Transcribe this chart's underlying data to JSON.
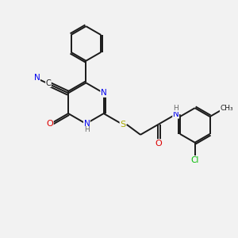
{
  "bg_color": "#f2f2f2",
  "bond_color": "#1a1a1a",
  "atom_colors": {
    "N": "#0000ee",
    "O": "#dd0000",
    "S": "#aaaa00",
    "Cl": "#00bb00",
    "C": "#1a1a1a",
    "H": "#666666"
  },
  "figsize": [
    3.0,
    3.0
  ],
  "dpi": 100
}
